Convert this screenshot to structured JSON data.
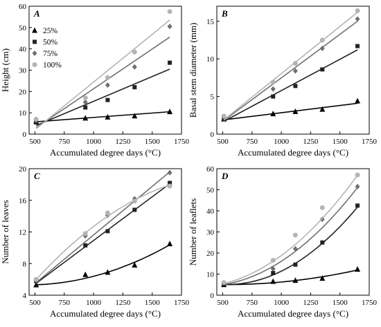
{
  "colors": {
    "25%": "#000000",
    "50%": "#222222",
    "75%": "#6f6f6f",
    "100%": "#b4b4b4"
  },
  "chart_data": [
    {
      "panel": "A",
      "type": "scatter",
      "xlabel": "Accumulated degree days (°C)",
      "ylabel": "Height (cm)",
      "xlim": [
        450,
        1750
      ],
      "ylim": [
        0,
        60
      ],
      "xticks": [
        500,
        750,
        1000,
        1250,
        1500,
        1750
      ],
      "yticks": [
        0,
        10,
        20,
        30,
        40,
        50,
        60
      ],
      "legend": {
        "placement": "top-left",
        "entries": [
          "25%",
          "50%",
          "75%",
          "100%"
        ]
      },
      "series": [
        {
          "name": "25%",
          "marker": "triangle",
          "x": [
            510,
            930,
            1120,
            1350,
            1650
          ],
          "y": [
            6,
            7.5,
            8,
            8.5,
            10.5
          ],
          "fit": {
            "type": "linear",
            "x": [
              510,
              1650
            ],
            "y": [
              5.8,
              10.5
            ]
          }
        },
        {
          "name": "50%",
          "marker": "square",
          "x": [
            510,
            930,
            1120,
            1350,
            1650
          ],
          "y": [
            5.5,
            12.5,
            16,
            22,
            33.5
          ],
          "fit": {
            "type": "linear",
            "x": [
              510,
              1650
            ],
            "y": [
              4,
              30.5
            ]
          }
        },
        {
          "name": "75%",
          "marker": "diamond",
          "x": [
            510,
            930,
            1120,
            1350,
            1650
          ],
          "y": [
            6.5,
            15,
            23,
            31.5,
            50.5
          ],
          "fit": {
            "type": "linear",
            "x": [
              510,
              1650
            ],
            "y": [
              3,
              45.5
            ]
          }
        },
        {
          "name": "100%",
          "marker": "circle",
          "x": [
            510,
            930,
            1120,
            1350,
            1650
          ],
          "y": [
            7,
            17,
            26.5,
            38.5,
            57.5
          ],
          "fit": {
            "type": "linear",
            "x": [
              510,
              1650
            ],
            "y": [
              2.5,
              53.5
            ]
          }
        }
      ]
    },
    {
      "panel": "B",
      "type": "scatter",
      "xlabel": "Accumulated degree days (°C)",
      "ylabel": "Basal stem diameter (mm)",
      "xlim": [
        450,
        1750
      ],
      "ylim": [
        0,
        17
      ],
      "xticks": [
        500,
        750,
        1000,
        1250,
        1500,
        1750
      ],
      "yticks": [
        0,
        5,
        10,
        15
      ],
      "series": [
        {
          "name": "25%",
          "marker": "triangle",
          "x": [
            510,
            930,
            1120,
            1350,
            1650
          ],
          "y": [
            2,
            2.7,
            3,
            3.3,
            4.4
          ],
          "fit": {
            "type": "linear",
            "x": [
              510,
              1650
            ],
            "y": [
              1.9,
              4.1
            ]
          }
        },
        {
          "name": "50%",
          "marker": "square",
          "x": [
            510,
            930,
            1120,
            1350,
            1650
          ],
          "y": [
            2,
            5,
            6.4,
            8.6,
            11.7
          ],
          "fit": {
            "type": "linear",
            "x": [
              510,
              1650
            ],
            "y": [
              1.7,
              11.2
            ]
          }
        },
        {
          "name": "75%",
          "marker": "diamond",
          "x": [
            510,
            930,
            1120,
            1350,
            1650
          ],
          "y": [
            2.3,
            6,
            8.4,
            11.4,
            15.3
          ],
          "fit": {
            "type": "linear",
            "x": [
              510,
              1650
            ],
            "y": [
              1.8,
              15
            ]
          }
        },
        {
          "name": "100%",
          "marker": "circle",
          "x": [
            510,
            930,
            1120,
            1350,
            1650
          ],
          "y": [
            2.4,
            6.9,
            9.4,
            12.5,
            16.4
          ],
          "fit": {
            "type": "linear",
            "x": [
              510,
              1650
            ],
            "y": [
              1.9,
              16.2
            ]
          }
        }
      ]
    },
    {
      "panel": "C",
      "type": "scatter",
      "xlabel": "Accumulated degree days (°C)",
      "ylabel": "Number of leaves",
      "xlim": [
        450,
        1750
      ],
      "ylim": [
        4,
        20
      ],
      "xticks": [
        500,
        750,
        1000,
        1250,
        1500,
        1750
      ],
      "yticks": [
        4,
        8,
        12,
        16,
        20
      ],
      "series": [
        {
          "name": "25%",
          "marker": "triangle",
          "x": [
            510,
            930,
            1120,
            1350,
            1650
          ],
          "y": [
            5.3,
            6.6,
            6.9,
            7.8,
            10.5
          ],
          "fit": {
            "type": "quadratic",
            "x": [
              510,
              930,
              1120,
              1350,
              1650
            ],
            "y": [
              5.3,
              6.2,
              6.9,
              8.1,
              10.4
            ]
          }
        },
        {
          "name": "50%",
          "marker": "square",
          "x": [
            510,
            930,
            1120,
            1350,
            1650
          ],
          "y": [
            5.8,
            10.3,
            12.1,
            14.8,
            18.2
          ],
          "fit": {
            "type": "linear",
            "x": [
              510,
              1650
            ],
            "y": [
              5.5,
              18.1
            ]
          }
        },
        {
          "name": "75%",
          "marker": "diamond",
          "x": [
            510,
            930,
            1120,
            1350,
            1650
          ],
          "y": [
            5.9,
            11.5,
            14.1,
            16.2,
            19.5
          ],
          "fit": {
            "type": "linear",
            "x": [
              510,
              1650
            ],
            "y": [
              5.6,
              19.6
            ]
          }
        },
        {
          "name": "100%",
          "marker": "circle",
          "x": [
            510,
            930,
            1120,
            1350,
            1650
          ],
          "y": [
            6,
            11.8,
            14.4,
            15.9,
            17.8
          ],
          "fit": {
            "type": "quadratic",
            "x": [
              510,
              930,
              1120,
              1350,
              1650
            ],
            "y": [
              6,
              11.8,
              14,
              16.1,
              17.9
            ]
          }
        }
      ]
    },
    {
      "panel": "D",
      "type": "scatter",
      "xlabel": "Accumulated degree days (°C)",
      "ylabel": "Number of leaflets",
      "xlim": [
        450,
        1750
      ],
      "ylim": [
        0,
        60
      ],
      "xticks": [
        500,
        750,
        1000,
        1250,
        1500,
        1750
      ],
      "yticks": [
        0,
        10,
        20,
        30,
        40,
        50,
        60
      ],
      "series": [
        {
          "name": "25%",
          "marker": "triangle",
          "x": [
            510,
            930,
            1120,
            1350,
            1650
          ],
          "y": [
            5,
            6.5,
            7,
            8,
            12.3
          ],
          "fit": {
            "type": "quadratic",
            "x": [
              510,
              930,
              1120,
              1350,
              1650
            ],
            "y": [
              5,
              6,
              7,
              8.6,
              12
            ]
          }
        },
        {
          "name": "50%",
          "marker": "square",
          "x": [
            510,
            930,
            1120,
            1350,
            1650
          ],
          "y": [
            5.5,
            10.5,
            14.5,
            25,
            42.5
          ],
          "fit": {
            "type": "quadratic",
            "x": [
              510,
              930,
              1120,
              1350,
              1650
            ],
            "y": [
              5,
              10,
              15.2,
              24,
              42
            ]
          }
        },
        {
          "name": "75%",
          "marker": "diamond",
          "x": [
            510,
            930,
            1120,
            1350,
            1650
          ],
          "y": [
            5.8,
            12.5,
            22,
            36,
            51.5
          ],
          "fit": {
            "type": "quadratic",
            "x": [
              510,
              930,
              1120,
              1350,
              1650
            ],
            "y": [
              5.2,
              13,
              21.5,
              32,
              51
            ]
          }
        },
        {
          "name": "100%",
          "marker": "circle",
          "x": [
            510,
            930,
            1120,
            1350,
            1650
          ],
          "y": [
            6,
            16.5,
            28.5,
            41.5,
            57
          ],
          "fit": {
            "type": "quadratic",
            "x": [
              510,
              930,
              1120,
              1350,
              1650
            ],
            "y": [
              5.5,
              16,
              24.5,
              36,
              57
            ]
          }
        }
      ]
    }
  ]
}
